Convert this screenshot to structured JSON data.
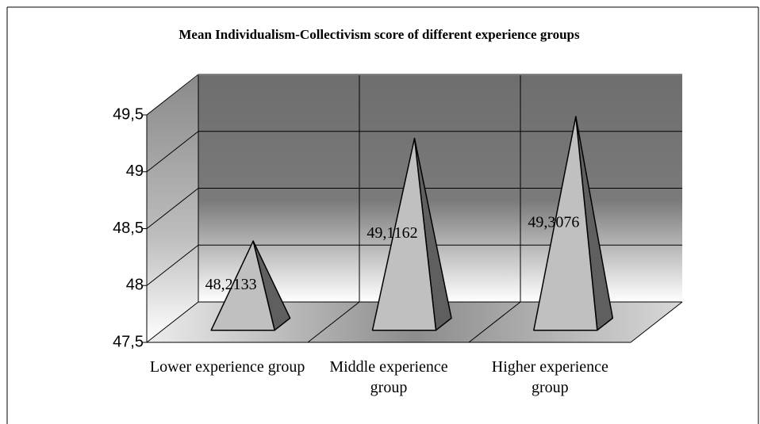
{
  "chart_data": {
    "type": "pyramid-bar",
    "title": "Mean Individualism-Collectivism score of different experience groups",
    "categories": [
      "Lower experience group",
      "Middle experience group",
      "Higher experience group"
    ],
    "values": [
      48.2133,
      49.1162,
      49.3076
    ],
    "value_labels": [
      "48,2133",
      "49,1162",
      "49,3076"
    ],
    "ylim": [
      47.5,
      49.5
    ],
    "yticks": [
      {
        "value": 47.5,
        "label": "47,5"
      },
      48,
      {
        "value": 48.5,
        "label": "48,5"
      },
      49,
      {
        "value": 49.5,
        "label": "49,5"
      }
    ],
    "grid": true,
    "color": "#c0c0c0",
    "side_color": "#5f5f5f"
  }
}
